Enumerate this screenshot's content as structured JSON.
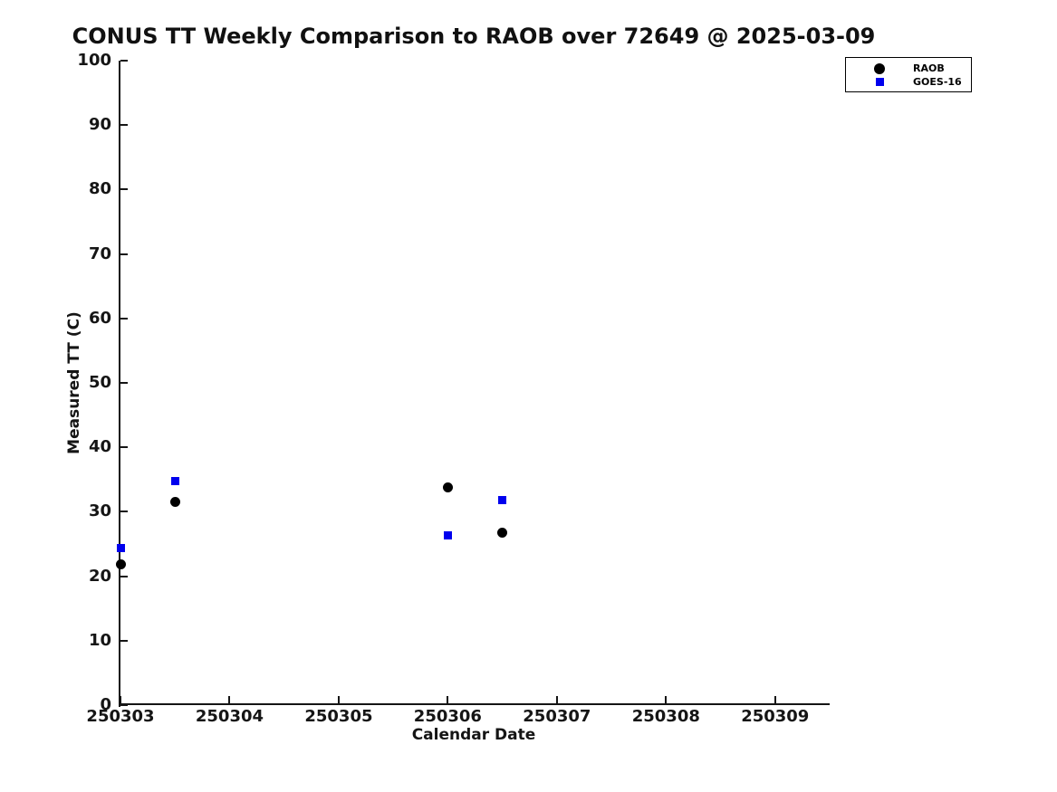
{
  "chart_data": {
    "type": "scatter",
    "title": "CONUS TT Weekly Comparison to RAOB over 72649 @ 2025-03-09",
    "xlabel": "Calendar Date",
    "ylabel": "Measured TT (C)",
    "xlim": [
      250303,
      250309.5
    ],
    "ylim": [
      0,
      100
    ],
    "grid": false,
    "legend_position": "top-right",
    "xticks": {
      "values": [
        250303,
        250304,
        250305,
        250306,
        250307,
        250308,
        250309
      ],
      "labels": [
        "250303",
        "250304",
        "250305",
        "250306",
        "250307",
        "250308",
        "250309"
      ]
    },
    "yticks": {
      "values": [
        0,
        10,
        20,
        30,
        40,
        50,
        60,
        70,
        80,
        90,
        100
      ],
      "labels": [
        "0",
        "10",
        "20",
        "30",
        "40",
        "50",
        "60",
        "70",
        "80",
        "90",
        "100"
      ]
    },
    "series": [
      {
        "name": "RAOB",
        "marker": "circle",
        "color": "#000000",
        "points": [
          [
            250303.0,
            21.9
          ],
          [
            250303.5,
            31.6
          ],
          [
            250306.0,
            33.8
          ],
          [
            250306.5,
            26.7
          ]
        ]
      },
      {
        "name": "GOES-16",
        "marker": "square",
        "color": "#0000ee",
        "points": [
          [
            250303.0,
            24.4
          ],
          [
            250303.5,
            34.7
          ],
          [
            250306.0,
            26.3
          ],
          [
            250306.5,
            31.8
          ]
        ]
      }
    ]
  }
}
